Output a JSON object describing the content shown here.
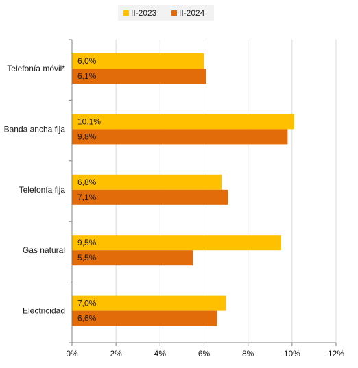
{
  "chart_data": {
    "type": "bar",
    "orientation": "horizontal",
    "categories": [
      "Telefonía móvil*",
      "Banda ancha fija",
      "Telefonía fija",
      "Gas natural",
      "Electricidad"
    ],
    "series": [
      {
        "name": "II-2023",
        "color": "#FFC000",
        "values": [
          6.0,
          10.1,
          6.8,
          9.5,
          7.0
        ],
        "labels": [
          "6,0%",
          "10,1%",
          "6,8%",
          "9,5%",
          "7,0%"
        ]
      },
      {
        "name": "II-2024",
        "color": "#E36C0A",
        "values": [
          6.1,
          9.8,
          7.1,
          5.5,
          6.6
        ],
        "labels": [
          "6,1%",
          "9,8%",
          "7,1%",
          "5,5%",
          "6,6%"
        ]
      }
    ],
    "xlim": [
      0,
      12
    ],
    "xticks": [
      0,
      2,
      4,
      6,
      8,
      10,
      12
    ],
    "xtick_labels": [
      "0%",
      "2%",
      "4%",
      "6%",
      "8%",
      "10%",
      "12%"
    ],
    "grid": true,
    "legend_position": "top"
  }
}
